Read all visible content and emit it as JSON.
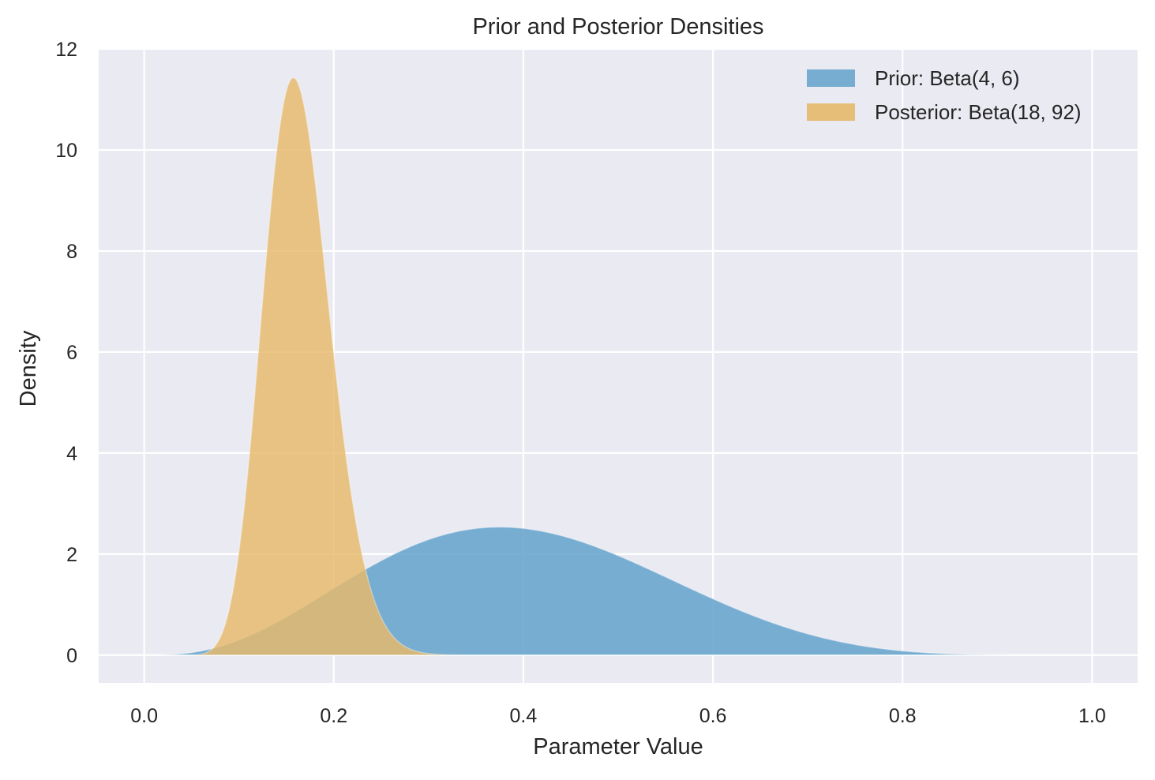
{
  "chart_data": {
    "type": "area",
    "title": "Prior and Posterior Densities",
    "xlabel": "Parameter Value",
    "ylabel": "Density",
    "xlim": [
      -0.048,
      1.048
    ],
    "ylim": [
      -0.55,
      12
    ],
    "x_ticks": [
      "0.0",
      "0.2",
      "0.4",
      "0.6",
      "0.8",
      "1.0"
    ],
    "x_tick_values": [
      0.0,
      0.2,
      0.4,
      0.6,
      0.8,
      1.0
    ],
    "y_ticks": [
      "0",
      "2",
      "4",
      "6",
      "8",
      "10",
      "12"
    ],
    "y_tick_values": [
      0,
      2,
      4,
      6,
      8,
      10,
      12
    ],
    "grid": true,
    "legend_position": "top-right",
    "plot_background": "#EAEAF2",
    "grid_color": "#FFFFFF",
    "series": [
      {
        "name": "Prior: Beta(4, 6)",
        "distribution": "beta",
        "alpha": 4,
        "beta": 6,
        "peak_x": 0.375,
        "peak_density": 2.52,
        "color": "#6BA6CE"
      },
      {
        "name": "Posterior: Beta(18, 92)",
        "distribution": "beta",
        "alpha": 18,
        "beta": 92,
        "peak_x": 0.157,
        "peak_density": 11.45,
        "color": "#E6B96A"
      }
    ]
  }
}
